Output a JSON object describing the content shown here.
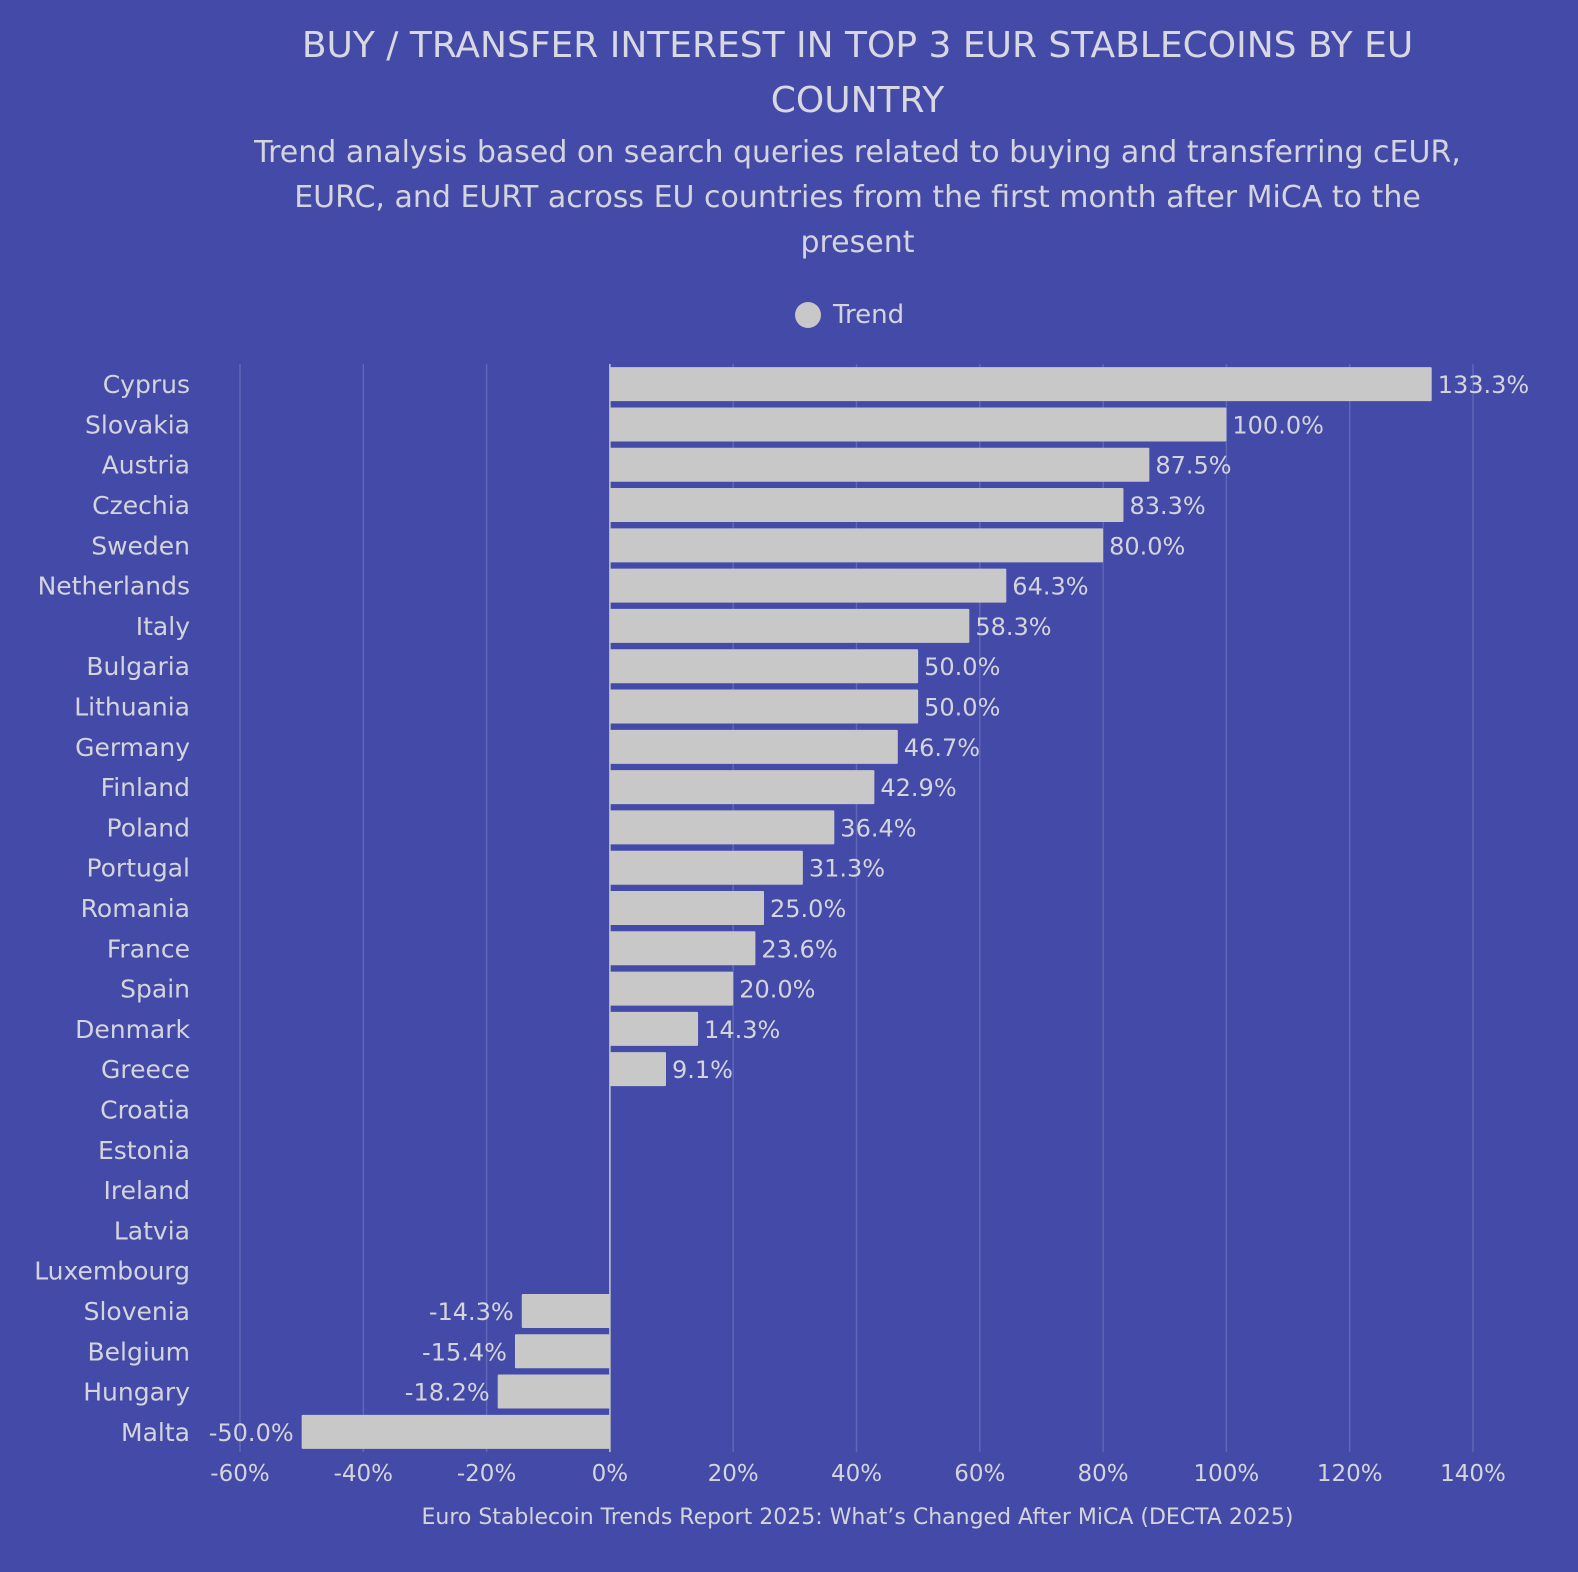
{
  "chart_data": {
    "type": "bar",
    "orientation": "horizontal",
    "title": "BUY / TRANSFER INTEREST IN TOP 3 EUR STABLECOINS BY EU COUNTRY",
    "subtitle": "Trend analysis based on search queries related to buying and transferring cEUR, EURC, and EURT across EU countries from the first month after MiCA to the present",
    "legend": [
      "Trend"
    ],
    "legend_placement": "top-center",
    "source": "Euro Stablecoin Trends Report 2025: What’s Changed After MiCA (DECTA 2025)",
    "categories": [
      "Cyprus",
      "Slovakia",
      "Austria",
      "Czechia",
      "Sweden",
      "Netherlands",
      "Italy",
      "Bulgaria",
      "Lithuania",
      "Germany",
      "Finland",
      "Poland",
      "Portugal",
      "Romania",
      "France",
      "Spain",
      "Denmark",
      "Greece",
      "Croatia",
      "Estonia",
      "Ireland",
      "Latvia",
      "Luxembourg",
      "Slovenia",
      "Belgium",
      "Hungary",
      "Malta"
    ],
    "values": [
      133.3,
      100.0,
      87.5,
      83.3,
      80.0,
      64.3,
      58.3,
      50.0,
      50.0,
      46.7,
      42.9,
      36.4,
      31.3,
      25.0,
      23.6,
      20.0,
      14.3,
      9.1,
      0,
      0,
      0,
      0,
      0,
      -14.3,
      -15.4,
      -18.2,
      -50.0
    ],
    "labels": [
      "133.3%",
      "100.0%",
      "87.5%",
      "83.3%",
      "80.0%",
      "64.3%",
      "58.3%",
      "50.0%",
      "50.0%",
      "46.7%",
      "42.9%",
      "36.4%",
      "31.3%",
      "25.0%",
      "23.6%",
      "20.0%",
      "14.3%",
      "9.1%",
      "",
      "",
      "",
      "",
      "",
      "-14.3%",
      "-15.4%",
      "-18.2%",
      "-50.0%"
    ],
    "xlim": [
      -60,
      140
    ],
    "xticks": [
      -60,
      -40,
      -20,
      0,
      20,
      40,
      60,
      80,
      100,
      120,
      140
    ],
    "xtick_labels": [
      "-60%",
      "-40%",
      "-20%",
      "0%",
      "20%",
      "40%",
      "60%",
      "80%",
      "100%",
      "120%",
      "140%"
    ],
    "grid": true,
    "colors": {
      "background": "#434aa8",
      "bar": "#c8c8c8",
      "grid": "#5f67b8"
    }
  }
}
